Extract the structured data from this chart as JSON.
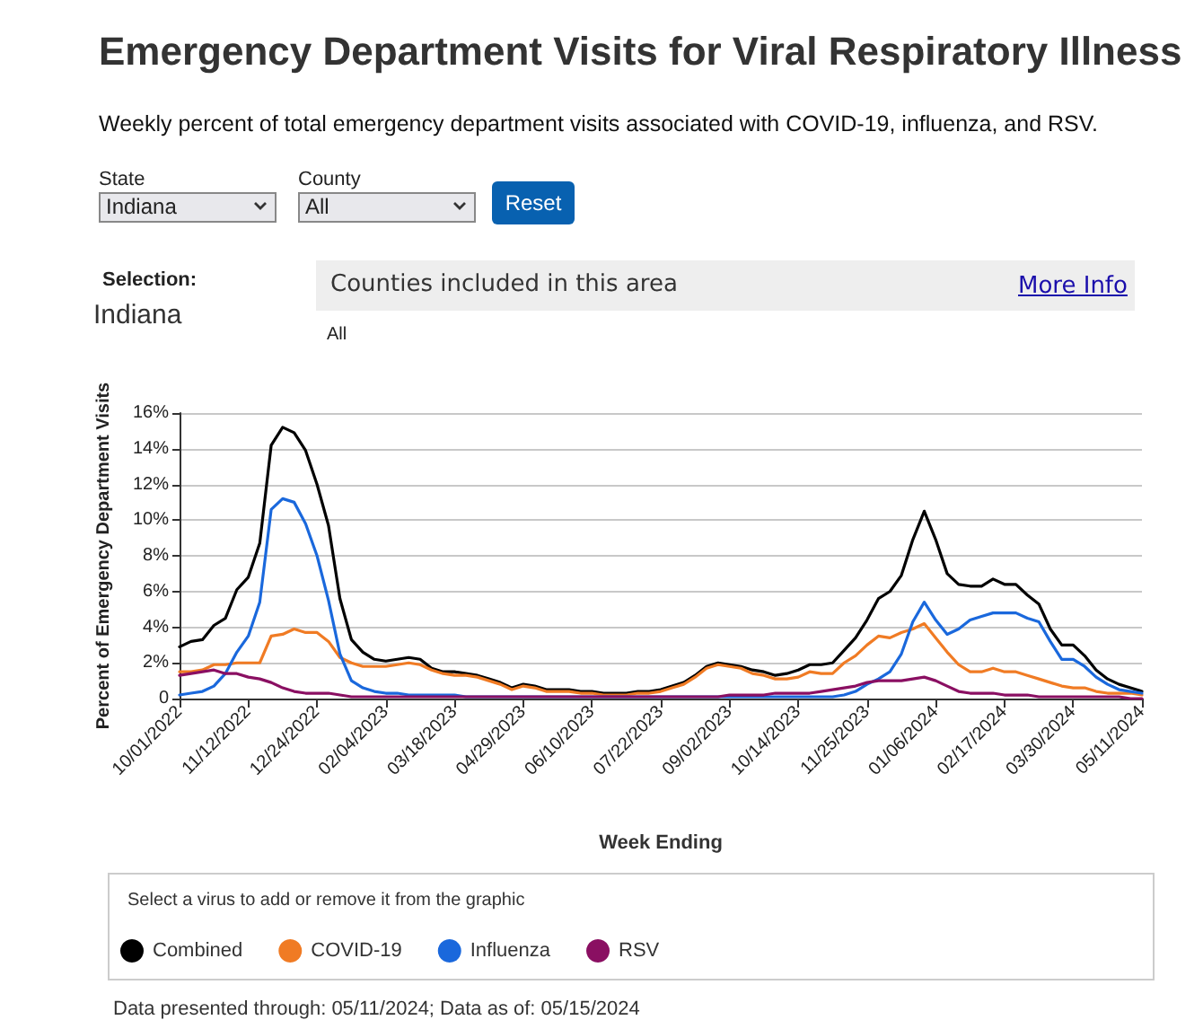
{
  "chart_data": {
    "type": "line",
    "title": "Emergency Department Visits for Viral Respiratory Illness",
    "subtitle": "Weekly percent of total emergency department visits associated with COVID-19, influenza, and RSV.",
    "xlabel": "Week Ending",
    "ylabel": "Percent of Emergency Department Visits",
    "annotations": [
      "State",
      "Indiana",
      "County",
      "All",
      "Reset",
      "Selection:",
      "Indiana",
      "Counties included in this area",
      "More Info",
      "All",
      "Select a virus to add or remove it from the graphic",
      "Data presented through: 05/11/2024; Data as of: 05/15/2024"
    ],
    "categories": [
      "10/01/2022",
      null,
      null,
      null,
      null,
      null,
      "11/12/2022",
      null,
      null,
      null,
      null,
      null,
      "12/24/2022",
      null,
      null,
      null,
      null,
      null,
      "02/04/2023",
      null,
      null,
      null,
      null,
      null,
      "03/18/2023",
      null,
      null,
      null,
      null,
      null,
      "04/29/2023",
      null,
      null,
      null,
      null,
      null,
      "06/10/2023",
      null,
      null,
      null,
      null,
      null,
      "07/22/2023",
      null,
      null,
      null,
      null,
      null,
      "09/02/2023",
      null,
      null,
      null,
      null,
      null,
      "10/14/2023",
      null,
      null,
      null,
      null,
      null,
      "11/25/2023",
      null,
      null,
      null,
      null,
      null,
      "01/06/2024",
      null,
      null,
      null,
      null,
      null,
      "02/17/2024",
      null,
      null,
      null,
      null,
      null,
      "03/30/2024",
      null,
      null,
      null,
      null,
      null,
      "05/11/2024"
    ],
    "series": [
      {
        "name": "Combined",
        "color": "#000000",
        "values": [
          2.9,
          3.2,
          3.3,
          4.1,
          4.5,
          6.1,
          6.8,
          8.7,
          14.2,
          15.2,
          14.9,
          13.9,
          12.0,
          9.7,
          5.6,
          3.3,
          2.6,
          2.2,
          2.1,
          2.2,
          2.3,
          2.2,
          1.7,
          1.5,
          1.5,
          1.4,
          1.3,
          1.1,
          0.9,
          0.6,
          0.8,
          0.7,
          0.5,
          0.5,
          0.5,
          0.4,
          0.4,
          0.3,
          0.3,
          0.3,
          0.4,
          0.4,
          0.5,
          0.7,
          0.9,
          1.3,
          1.8,
          2.0,
          1.9,
          1.8,
          1.6,
          1.5,
          1.3,
          1.4,
          1.6,
          1.9,
          1.9,
          2.0,
          2.7,
          3.4,
          4.4,
          5.6,
          6.0,
          6.9,
          8.9,
          10.5,
          8.9,
          7.0,
          6.4,
          6.3,
          6.3,
          6.7,
          6.4,
          6.4,
          5.8,
          5.3,
          3.9,
          3.0,
          3.0,
          2.4,
          1.6,
          1.1,
          0.8,
          0.6,
          0.4
        ]
      },
      {
        "name": "COVID-19",
        "color": "#f07b24",
        "values": [
          1.5,
          1.5,
          1.6,
          1.9,
          1.9,
          2.0,
          2.0,
          2.0,
          3.5,
          3.6,
          3.9,
          3.7,
          3.7,
          3.2,
          2.3,
          2.0,
          1.8,
          1.8,
          1.8,
          1.9,
          2.0,
          1.9,
          1.6,
          1.4,
          1.3,
          1.3,
          1.2,
          1.0,
          0.8,
          0.5,
          0.7,
          0.6,
          0.4,
          0.4,
          0.4,
          0.3,
          0.3,
          0.2,
          0.2,
          0.2,
          0.3,
          0.3,
          0.4,
          0.6,
          0.8,
          1.2,
          1.7,
          1.9,
          1.8,
          1.7,
          1.4,
          1.3,
          1.1,
          1.1,
          1.2,
          1.5,
          1.4,
          1.4,
          2.0,
          2.4,
          3.0,
          3.5,
          3.4,
          3.7,
          3.9,
          4.2,
          3.4,
          2.6,
          1.9,
          1.5,
          1.5,
          1.7,
          1.5,
          1.5,
          1.3,
          1.1,
          0.9,
          0.7,
          0.6,
          0.6,
          0.4,
          0.3,
          0.3,
          0.3,
          0.2
        ]
      },
      {
        "name": "Influenza",
        "color": "#1a68dc",
        "values": [
          0.2,
          0.3,
          0.4,
          0.7,
          1.4,
          2.6,
          3.5,
          5.4,
          10.6,
          11.2,
          11.0,
          9.8,
          8.0,
          5.5,
          2.5,
          1.0,
          0.6,
          0.4,
          0.3,
          0.3,
          0.2,
          0.2,
          0.2,
          0.2,
          0.2,
          0.1,
          0.1,
          0.1,
          0.1,
          0.1,
          0.1,
          0.1,
          0.1,
          0.1,
          0.1,
          0.1,
          0.1,
          0.1,
          0.1,
          0.1,
          0.1,
          0.1,
          0.1,
          0.1,
          0.1,
          0.1,
          0.1,
          0.1,
          0.1,
          0.1,
          0.1,
          0.1,
          0.1,
          0.1,
          0.1,
          0.1,
          0.1,
          0.1,
          0.2,
          0.4,
          0.8,
          1.1,
          1.5,
          2.5,
          4.3,
          5.4,
          4.4,
          3.6,
          3.9,
          4.4,
          4.6,
          4.8,
          4.8,
          4.8,
          4.5,
          4.3,
          3.2,
          2.2,
          2.2,
          1.8,
          1.2,
          0.8,
          0.5,
          0.4,
          0.3
        ]
      },
      {
        "name": "RSV",
        "color": "#8a0f62",
        "values": [
          1.3,
          1.4,
          1.5,
          1.6,
          1.4,
          1.4,
          1.2,
          1.1,
          0.9,
          0.6,
          0.4,
          0.3,
          0.3,
          0.3,
          0.2,
          0.1,
          0.1,
          0.1,
          0.1,
          0.1,
          0.1,
          0.1,
          0.1,
          0.1,
          0.1,
          0.1,
          0.1,
          0.1,
          0.1,
          0.1,
          0.1,
          0.1,
          0.1,
          0.1,
          0.1,
          0.1,
          0.1,
          0.1,
          0.1,
          0.1,
          0.1,
          0.1,
          0.1,
          0.1,
          0.1,
          0.1,
          0.1,
          0.1,
          0.2,
          0.2,
          0.2,
          0.2,
          0.3,
          0.3,
          0.3,
          0.3,
          0.4,
          0.5,
          0.6,
          0.7,
          0.9,
          1.0,
          1.0,
          1.0,
          1.1,
          1.2,
          1.0,
          0.7,
          0.4,
          0.3,
          0.3,
          0.3,
          0.2,
          0.2,
          0.2,
          0.1,
          0.1,
          0.1,
          0.1,
          0.1,
          0.1,
          0.1,
          0.1,
          0.0,
          0.0
        ]
      }
    ],
    "ylim": [
      0,
      16
    ],
    "yticks": [
      0,
      {
        "value": 2,
        "label": "2%"
      },
      {
        "value": 4,
        "label": "4%"
      },
      {
        "value": 6,
        "label": "6%"
      },
      {
        "value": 8,
        "label": "8%"
      },
      {
        "value": 10,
        "label": "10%"
      },
      {
        "value": 12,
        "label": "12%"
      },
      {
        "value": 14,
        "label": "14%"
      },
      {
        "value": 16,
        "label": "16%"
      }
    ],
    "grid": "y",
    "legend": "bottom",
    "marker": "none",
    "line_style": "solid"
  }
}
